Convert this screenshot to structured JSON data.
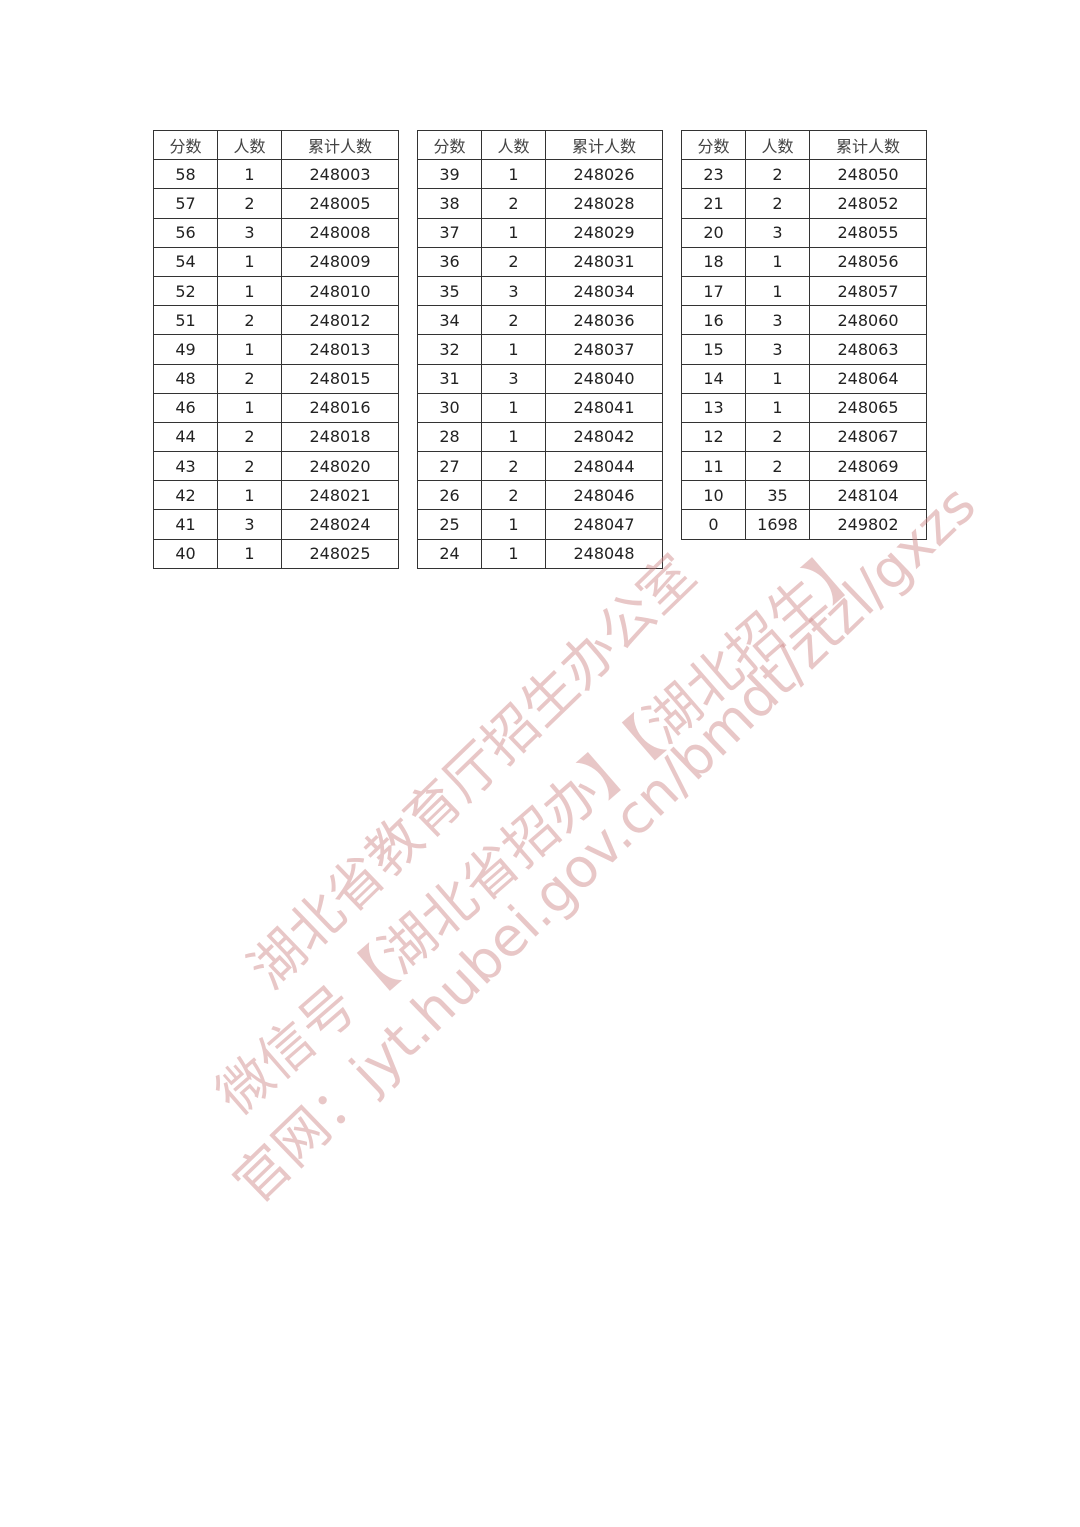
{
  "headers": [
    "分数",
    "人数",
    "累计人数"
  ],
  "tables": [
    [
      [
        "58",
        "1",
        "248003"
      ],
      [
        "57",
        "2",
        "248005"
      ],
      [
        "56",
        "3",
        "248008"
      ],
      [
        "54",
        "1",
        "248009"
      ],
      [
        "52",
        "1",
        "248010"
      ],
      [
        "51",
        "2",
        "248012"
      ],
      [
        "49",
        "1",
        "248013"
      ],
      [
        "48",
        "2",
        "248015"
      ],
      [
        "46",
        "1",
        "248016"
      ],
      [
        "44",
        "2",
        "248018"
      ],
      [
        "43",
        "2",
        "248020"
      ],
      [
        "42",
        "1",
        "248021"
      ],
      [
        "41",
        "3",
        "248024"
      ],
      [
        "40",
        "1",
        "248025"
      ]
    ],
    [
      [
        "39",
        "1",
        "248026"
      ],
      [
        "38",
        "2",
        "248028"
      ],
      [
        "37",
        "1",
        "248029"
      ],
      [
        "36",
        "2",
        "248031"
      ],
      [
        "35",
        "3",
        "248034"
      ],
      [
        "34",
        "2",
        "248036"
      ],
      [
        "32",
        "1",
        "248037"
      ],
      [
        "31",
        "3",
        "248040"
      ],
      [
        "30",
        "1",
        "248041"
      ],
      [
        "28",
        "1",
        "248042"
      ],
      [
        "27",
        "2",
        "248044"
      ],
      [
        "26",
        "2",
        "248046"
      ],
      [
        "25",
        "1",
        "248047"
      ],
      [
        "24",
        "1",
        "248048"
      ]
    ],
    [
      [
        "23",
        "2",
        "248050"
      ],
      [
        "21",
        "2",
        "248052"
      ],
      [
        "20",
        "3",
        "248055"
      ],
      [
        "18",
        "1",
        "248056"
      ],
      [
        "17",
        "1",
        "248057"
      ],
      [
        "16",
        "3",
        "248060"
      ],
      [
        "15",
        "3",
        "248063"
      ],
      [
        "14",
        "1",
        "248064"
      ],
      [
        "13",
        "1",
        "248065"
      ],
      [
        "12",
        "2",
        "248067"
      ],
      [
        "11",
        "2",
        "248069"
      ],
      [
        "10",
        "35",
        "248104"
      ],
      [
        "0",
        "1698",
        "249802"
      ]
    ]
  ],
  "watermark": {
    "line1": "湖北省教育厅招生办公室",
    "line2": "微信号【湖北省招办】【湖北招生】",
    "line3": "官网：jyt.hubei.gov.cn/bmdt/ztzl/gxzs",
    "color": "#d99a9a"
  }
}
